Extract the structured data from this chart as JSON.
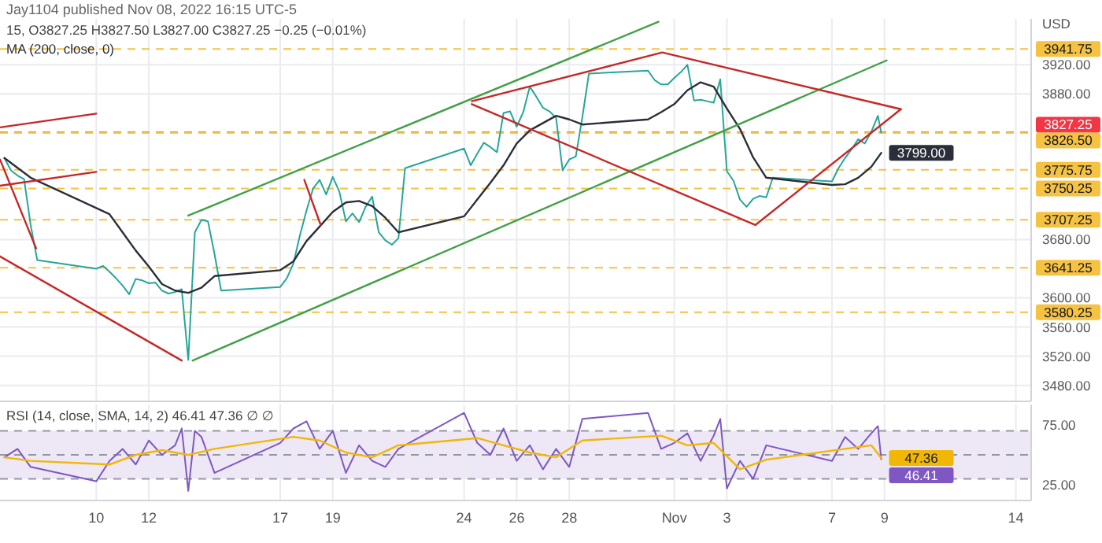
{
  "chart_data": [
    {
      "type": "line",
      "title": "Jay1104 published Nov 08, 2022 16:15 UTC-5",
      "subtitle": "15, O3827.25 H3827.50 L3827.00 C3827.25 −0.25 (−0.01%)",
      "ylabel": "USD",
      "xlim": [
        "2022-10-06T08:00",
        "2022-11-14T14:00"
      ],
      "ylim": [
        3458,
        3983
      ],
      "xticks": [
        {
          "value": "2022-10-10",
          "label": null
        },
        {
          "value": "2022-10-12",
          "label": null
        },
        {
          "value": "2022-10-17",
          "label": null
        },
        {
          "value": "2022-10-19",
          "label": null
        },
        {
          "value": "2022-10-24",
          "label": null
        },
        {
          "value": "2022-10-26",
          "label": null
        },
        {
          "value": "2022-10-28",
          "label": null
        },
        {
          "value": "2022-11-01",
          "label": null
        },
        {
          "value": "2022-11-03",
          "label": null
        },
        {
          "value": "2022-11-07",
          "label": null
        },
        {
          "value": "2022-11-09",
          "label": null
        },
        {
          "value": "2022-11-14",
          "label": null
        }
      ],
      "yticks": [
        {
          "value": 3480,
          "label": "3480.00"
        },
        {
          "value": 3520,
          "label": "3520.00"
        },
        {
          "value": 3560,
          "label": "3560.00"
        },
        {
          "value": 3600,
          "label": "3600.00"
        },
        {
          "value": 3680,
          "label": "3680.00"
        },
        {
          "value": 3880,
          "label": "3880.00"
        },
        {
          "value": 3920,
          "label": "3920.00"
        }
      ],
      "grid": true,
      "tick_labels": "y",
      "legend": "top left",
      "ref_lines": [
        {
          "axis": "y",
          "value": 3941.75,
          "label": "3941.75",
          "color": "#f5c242",
          "line_style": "dashed"
        },
        {
          "axis": "y",
          "value": 3827.25,
          "label": "3827.25",
          "color": "#f23645",
          "line_style": "dashed"
        },
        {
          "axis": "y",
          "value": 3826.5,
          "label": "3826.50",
          "color": "#f5c242",
          "line_style": "dashed"
        },
        {
          "axis": "y",
          "value": 3775.75,
          "label": "3775.75",
          "color": "#f5c242",
          "line_style": "dashed"
        },
        {
          "axis": "y",
          "value": 3750.25,
          "label": "3750.25",
          "color": "#f5c242",
          "line_style": "dashed"
        },
        {
          "axis": "y",
          "value": 3707.25,
          "label": "3707.25",
          "color": "#f5c242",
          "line_style": "dashed"
        },
        {
          "axis": "y",
          "value": 3641.25,
          "label": "3641.25",
          "color": "#f5c242",
          "line_style": "dashed"
        },
        {
          "axis": "y",
          "value": 3580.25,
          "label": "3580.25",
          "color": "#f5c242",
          "line_style": "dashed"
        }
      ],
      "series": [
        {
          "color": "#26a69a",
          "x": [
            "2022-10-06T12:00",
            "2022-10-06T18:00",
            "2022-10-07T00:00",
            "2022-10-07T06:00",
            "2022-10-07T12:00",
            "2022-10-07T18:00",
            "2022-10-10T00:00",
            "2022-10-10T06:00",
            "2022-10-10T12:00",
            "2022-10-10T18:00",
            "2022-10-11T00:00",
            "2022-10-11T06:00",
            "2022-10-11T12:00",
            "2022-10-11T18:00",
            "2022-10-12T00:00",
            "2022-10-12T06:00",
            "2022-10-12T12:00",
            "2022-10-12T18:00",
            "2022-10-13T00:00",
            "2022-10-13T06:00",
            "2022-10-13T12:00",
            "2022-10-13T18:00",
            "2022-10-14T00:00",
            "2022-10-14T06:00",
            "2022-10-14T12:00",
            "2022-10-14T18:00",
            "2022-10-17T00:00",
            "2022-10-17T06:00",
            "2022-10-17T12:00",
            "2022-10-17T18:00",
            "2022-10-18T00:00",
            "2022-10-18T06:00",
            "2022-10-18T12:00",
            "2022-10-18T18:00",
            "2022-10-19T00:00",
            "2022-10-19T06:00",
            "2022-10-19T12:00",
            "2022-10-19T18:00",
            "2022-10-20T00:00",
            "2022-10-20T06:00",
            "2022-10-20T12:00",
            "2022-10-20T18:00",
            "2022-10-21T00:00",
            "2022-10-21T06:00",
            "2022-10-21T12:00",
            "2022-10-21T18:00",
            "2022-10-24T00:00",
            "2022-10-24T06:00",
            "2022-10-24T12:00",
            "2022-10-24T18:00",
            "2022-10-25T00:00",
            "2022-10-25T06:00",
            "2022-10-25T12:00",
            "2022-10-25T18:00",
            "2022-10-26T00:00",
            "2022-10-26T06:00",
            "2022-10-26T12:00",
            "2022-10-26T18:00",
            "2022-10-27T00:00",
            "2022-10-27T06:00",
            "2022-10-27T12:00",
            "2022-10-27T18:00",
            "2022-10-28T00:00",
            "2022-10-28T06:00",
            "2022-10-28T12:00",
            "2022-10-28T18:00",
            "2022-10-31T00:00",
            "2022-10-31T06:00",
            "2022-10-31T12:00",
            "2022-10-31T18:00",
            "2022-11-01T00:00",
            "2022-11-01T06:00",
            "2022-11-01T12:00",
            "2022-11-01T18:00",
            "2022-11-02T00:00",
            "2022-11-02T06:00",
            "2022-11-02T12:00",
            "2022-11-02T18:00",
            "2022-11-03T00:00",
            "2022-11-03T06:00",
            "2022-11-03T12:00",
            "2022-11-03T18:00",
            "2022-11-04T00:00",
            "2022-11-04T06:00",
            "2022-11-04T12:00",
            "2022-11-04T18:00",
            "2022-11-07T00:00",
            "2022-11-07T06:00",
            "2022-11-07T12:00",
            "2022-11-07T18:00",
            "2022-11-08T00:00",
            "2022-11-08T06:00",
            "2022-11-08T12:00",
            "2022-11-08T18:00",
            "2022-11-08T21:00"
          ],
          "values": [
            3792,
            3775,
            3768,
            3763,
            3700,
            3652,
            3640,
            3644,
            3636,
            3627,
            3617,
            3605,
            3626,
            3624,
            3620,
            3621,
            3610,
            3606,
            3608,
            3612,
            3515,
            3690,
            3707,
            3705,
            3660,
            3610,
            3615,
            3627,
            3647,
            3686,
            3720,
            3750,
            3762,
            3742,
            3766,
            3746,
            3705,
            3716,
            3704,
            3725,
            3739,
            3690,
            3679,
            3673,
            3682,
            3778,
            3805,
            3782,
            3798,
            3813,
            3807,
            3800,
            3854,
            3856,
            3835,
            3855,
            3890,
            3876,
            3861,
            3856,
            3847,
            3775,
            3790,
            3794,
            3848,
            3908,
            3912,
            3899,
            3893,
            3893,
            3902,
            3910,
            3920,
            3871,
            3872,
            3870,
            3868,
            3900,
            3774,
            3761,
            3735,
            3725,
            3736,
            3740,
            3738,
            3765,
            3760,
            3778,
            3792,
            3804,
            3818,
            3812,
            3828,
            3850,
            3827
          ]
        },
        {
          "name": "MA (200, close, 0)",
          "color": "#2a2e39",
          "x": [
            "2022-10-06T12:00",
            "2022-10-07T12:00",
            "2022-10-10T12:00",
            "2022-10-11T00:00",
            "2022-10-11T12:00",
            "2022-10-12T00:00",
            "2022-10-12T12:00",
            "2022-10-13T00:00",
            "2022-10-13T12:00",
            "2022-10-14T00:00",
            "2022-10-14T12:00",
            "2022-10-17T00:00",
            "2022-10-17T12:00",
            "2022-10-18T00:00",
            "2022-10-18T12:00",
            "2022-10-19T00:00",
            "2022-10-19T12:00",
            "2022-10-20T00:00",
            "2022-10-20T12:00",
            "2022-10-21T00:00",
            "2022-10-21T12:00",
            "2022-10-24T00:00",
            "2022-10-24T12:00",
            "2022-10-25T00:00",
            "2022-10-25T12:00",
            "2022-10-26T00:00",
            "2022-10-26T12:00",
            "2022-10-27T00:00",
            "2022-10-27T12:00",
            "2022-10-28T00:00",
            "2022-10-28T12:00",
            "2022-10-31T00:00",
            "2022-10-31T12:00",
            "2022-11-01T00:00",
            "2022-11-01T12:00",
            "2022-11-02T00:00",
            "2022-11-02T12:00",
            "2022-11-03T00:00",
            "2022-11-03T12:00",
            "2022-11-04T00:00",
            "2022-11-04T12:00",
            "2022-11-07T00:00",
            "2022-11-07T12:00",
            "2022-11-08T00:00",
            "2022-11-08T12:00",
            "2022-11-08T21:00"
          ],
          "values": [
            3792,
            3765,
            3715,
            3690,
            3665,
            3643,
            3619,
            3610,
            3607,
            3614,
            3630,
            3638,
            3650,
            3678,
            3698,
            3718,
            3731,
            3733,
            3726,
            3710,
            3690,
            3712,
            3735,
            3758,
            3782,
            3812,
            3830,
            3840,
            3850,
            3845,
            3838,
            3845,
            3855,
            3866,
            3885,
            3896,
            3890,
            3860,
            3832,
            3793,
            3765,
            3755,
            3756,
            3765,
            3780,
            3799
          ],
          "value_labels": [
            null,
            null,
            null,
            null,
            null,
            null,
            null,
            null,
            null,
            null,
            null,
            null,
            null,
            null,
            null,
            null,
            null,
            null,
            null,
            null,
            null,
            null,
            null,
            null,
            null,
            null,
            null,
            null,
            null,
            null,
            null,
            null,
            null,
            null,
            null,
            null,
            null,
            null,
            null,
            null,
            null,
            null,
            null,
            null,
            null,
            "3799.00"
          ]
        },
        {
          "color": "#43a047",
          "x": [
            "2022-10-13T12:00",
            "2022-10-31T09:36"
          ],
          "values": [
            3713,
            3979
          ]
        },
        {
          "color": "#43a047",
          "x": [
            "2022-10-13T16:00",
            "2022-11-09T02:00"
          ],
          "values": [
            3514,
            3926
          ]
        },
        {
          "color": "#c62828",
          "x": [
            "2022-10-06T08:00",
            "2022-10-13T06:00"
          ],
          "values": [
            3657,
            3514
          ]
        },
        {
          "color": "#c62828",
          "x": [
            "2022-10-06T08:00",
            "2022-10-10T00:00"
          ],
          "values": [
            3834,
            3853
          ]
        },
        {
          "color": "#c62828",
          "x": [
            "2022-10-06T08:00",
            "2022-10-10T00:00"
          ],
          "values": [
            3754,
            3773
          ]
        },
        {
          "color": "#c62828",
          "x": [
            "2022-10-06T08:00",
            "2022-10-07T17:00"
          ],
          "values": [
            3790,
            3668
          ]
        },
        {
          "color": "#c62828",
          "x": [
            "2022-10-17T22:00",
            "2022-10-18T13:00"
          ],
          "values": [
            3762,
            3700
          ]
        },
        {
          "color": "#c62828",
          "x": [
            "2022-10-24T07:00",
            "2022-10-31T13:00",
            "2022-11-09T15:00"
          ],
          "values": [
            3870,
            3937,
            3859
          ]
        },
        {
          "color": "#c62828",
          "x": [
            "2022-10-24T07:00",
            "2022-11-04T02:00",
            "2022-11-09T15:00"
          ],
          "values": [
            3866,
            3700,
            3859
          ]
        }
      ]
    },
    {
      "type": "line",
      "title": "RSI (14, close, SMA, 14, 2) 46.41 47.36 ∅ ∅",
      "xlim": [
        "2022-10-06T08:00",
        "2022-11-14T14:00"
      ],
      "ylim": [
        12,
        92
      ],
      "xticks": [
        {
          "value": "2022-10-10",
          "label": "10"
        },
        {
          "value": "2022-10-12",
          "label": "12"
        },
        {
          "value": "2022-10-17",
          "label": "17"
        },
        {
          "value": "2022-10-19",
          "label": "19"
        },
        {
          "value": "2022-10-24",
          "label": "24"
        },
        {
          "value": "2022-10-26",
          "label": "26"
        },
        {
          "value": "2022-10-28",
          "label": "28"
        },
        {
          "value": "2022-11-01",
          "label": "Nov"
        },
        {
          "value": "2022-11-03",
          "label": "3"
        },
        {
          "value": "2022-11-07",
          "label": "7"
        },
        {
          "value": "2022-11-09",
          "label": "9"
        },
        {
          "value": "2022-11-14",
          "label": "14"
        }
      ],
      "yticks": [
        {
          "value": 25,
          "label": "25.00"
        },
        {
          "value": 75,
          "label": "75.00"
        }
      ],
      "grid": "x",
      "bands": [
        {
          "axis": "y",
          "from": 30,
          "to": 70,
          "color": "#ede7f6"
        }
      ],
      "ref_lines": [
        {
          "axis": "y",
          "value": 70,
          "color": "#9598a1",
          "line_style": "dashed"
        },
        {
          "axis": "y",
          "value": 50,
          "color": "#9598a1",
          "line_style": "dashed"
        },
        {
          "axis": "y",
          "value": 30,
          "color": "#9598a1",
          "line_style": "dashed"
        }
      ],
      "series": [
        {
          "color": "#7e57c2",
          "x": [
            "2022-10-06T12:00",
            "2022-10-07T00:00",
            "2022-10-07T12:00",
            "2022-10-10T00:00",
            "2022-10-10T12:00",
            "2022-10-11T00:00",
            "2022-10-11T12:00",
            "2022-10-12T00:00",
            "2022-10-12T12:00",
            "2022-10-13T00:00",
            "2022-10-13T06:00",
            "2022-10-13T12:00",
            "2022-10-13T18:00",
            "2022-10-14T00:00",
            "2022-10-14T12:00",
            "2022-10-17T00:00",
            "2022-10-17T12:00",
            "2022-10-18T00:00",
            "2022-10-18T12:00",
            "2022-10-19T00:00",
            "2022-10-19T12:00",
            "2022-10-20T00:00",
            "2022-10-20T12:00",
            "2022-10-21T00:00",
            "2022-10-21T12:00",
            "2022-10-24T00:00",
            "2022-10-24T12:00",
            "2022-10-25T00:00",
            "2022-10-25T12:00",
            "2022-10-26T00:00",
            "2022-10-26T12:00",
            "2022-10-27T00:00",
            "2022-10-27T12:00",
            "2022-10-28T00:00",
            "2022-10-28T12:00",
            "2022-10-31T00:00",
            "2022-10-31T12:00",
            "2022-11-01T00:00",
            "2022-11-01T12:00",
            "2022-11-02T00:00",
            "2022-11-02T12:00",
            "2022-11-02T18:00",
            "2022-11-03T00:00",
            "2022-11-03T12:00",
            "2022-11-04T00:00",
            "2022-11-04T12:00",
            "2022-11-07T00:00",
            "2022-11-07T12:00",
            "2022-11-08T00:00",
            "2022-11-08T12:00",
            "2022-11-08T18:00",
            "2022-11-08T21:00"
          ],
          "values": [
            48,
            55,
            40,
            28,
            45,
            55,
            42,
            62,
            50,
            58,
            72,
            20,
            70,
            65,
            35,
            60,
            72,
            78,
            55,
            70,
            35,
            58,
            45,
            40,
            55,
            85,
            60,
            50,
            72,
            45,
            58,
            38,
            55,
            40,
            80,
            85,
            55,
            60,
            68,
            45,
            66,
            80,
            22,
            45,
            30,
            58,
            45,
            65,
            55,
            68,
            74,
            46.41
          ],
          "value_labels": [
            null,
            null,
            null,
            null,
            null,
            null,
            null,
            null,
            null,
            null,
            null,
            null,
            null,
            null,
            null,
            null,
            null,
            null,
            null,
            null,
            null,
            null,
            null,
            null,
            null,
            null,
            null,
            null,
            null,
            null,
            null,
            null,
            null,
            null,
            null,
            null,
            null,
            null,
            null,
            null,
            null,
            null,
            null,
            null,
            null,
            null,
            null,
            null,
            null,
            null,
            null,
            "46.41"
          ]
        },
        {
          "color": "#f2b705",
          "x": [
            "2022-10-06T12:00",
            "2022-10-07T12:00",
            "2022-10-10T12:00",
            "2022-10-11T12:00",
            "2022-10-12T12:00",
            "2022-10-13T12:00",
            "2022-10-14T12:00",
            "2022-10-17T12:00",
            "2022-10-18T12:00",
            "2022-10-19T12:00",
            "2022-10-20T12:00",
            "2022-10-21T12:00",
            "2022-10-24T12:00",
            "2022-10-25T12:00",
            "2022-10-26T12:00",
            "2022-10-27T12:00",
            "2022-10-28T12:00",
            "2022-10-31T12:00",
            "2022-11-01T12:00",
            "2022-11-02T12:00",
            "2022-11-03T12:00",
            "2022-11-04T12:00",
            "2022-11-07T12:00",
            "2022-11-08T12:00",
            "2022-11-08T21:00"
          ],
          "values": [
            48,
            45,
            42,
            50,
            54,
            50,
            55,
            65,
            62,
            52,
            48,
            58,
            64,
            58,
            52,
            48,
            62,
            66,
            58,
            60,
            38,
            46,
            55,
            58,
            47.36
          ],
          "value_labels": [
            null,
            null,
            null,
            null,
            null,
            null,
            null,
            null,
            null,
            null,
            null,
            null,
            null,
            null,
            null,
            null,
            null,
            null,
            null,
            null,
            null,
            null,
            null,
            null,
            "47.36"
          ]
        }
      ]
    }
  ]
}
